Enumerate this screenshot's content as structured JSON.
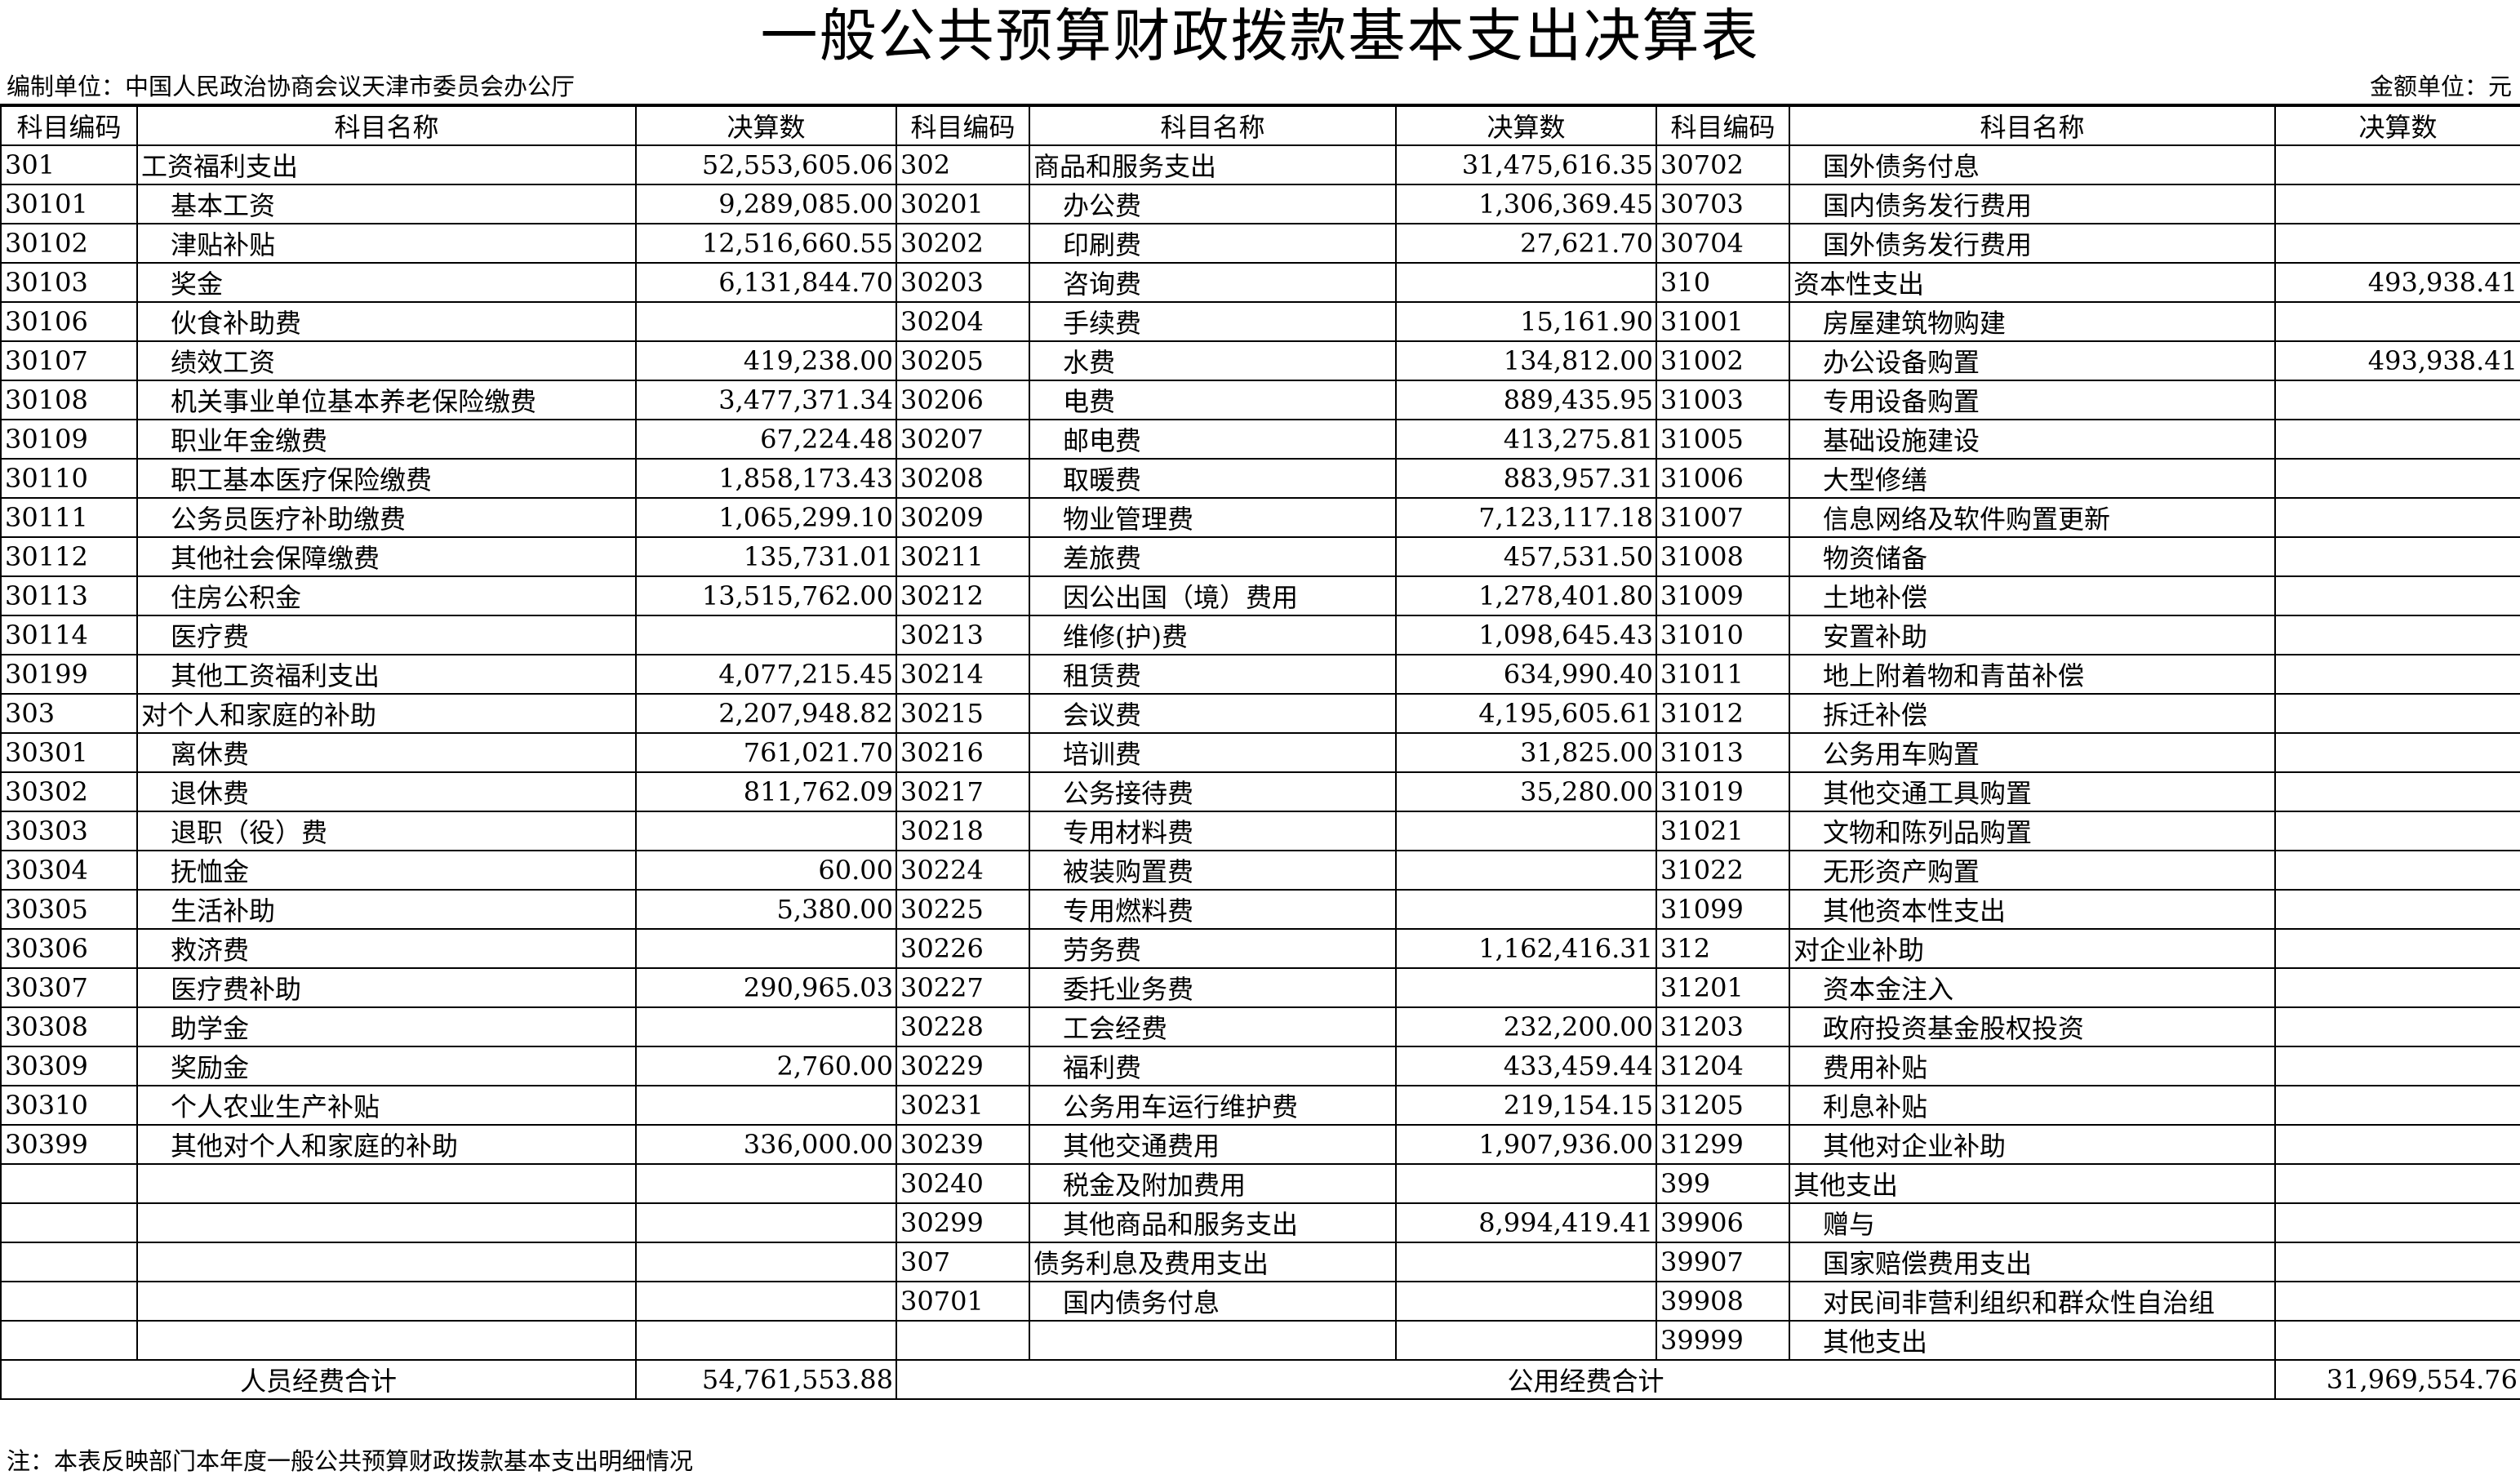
{
  "title": "一般公共预算财政拨款基本支出决算表",
  "unit_label": "编制单位：中国人民政治协商会议天津市委员会办公厅",
  "money_unit": "金额单位：元",
  "headers": [
    "科目编码",
    "科目名称",
    "决算数",
    "科目编码",
    "科目名称",
    "决算数",
    "科目编码",
    "科目名称",
    "决算数"
  ],
  "left": [
    {
      "code": "301",
      "name": "工资福利支出",
      "amount": "52,553,605.06"
    },
    {
      "code": "30101",
      "name": "基本工资",
      "amount": "9,289,085.00"
    },
    {
      "code": "30102",
      "name": "津贴补贴",
      "amount": "12,516,660.55"
    },
    {
      "code": "30103",
      "name": "奖金",
      "amount": "6,131,844.70"
    },
    {
      "code": "30106",
      "name": "伙食补助费",
      "amount": ""
    },
    {
      "code": "30107",
      "name": "绩效工资",
      "amount": "419,238.00"
    },
    {
      "code": "30108",
      "name": "机关事业单位基本养老保险缴费",
      "amount": "3,477,371.34"
    },
    {
      "code": "30109",
      "name": "职业年金缴费",
      "amount": "67,224.48"
    },
    {
      "code": "30110",
      "name": "职工基本医疗保险缴费",
      "amount": "1,858,173.43"
    },
    {
      "code": "30111",
      "name": "公务员医疗补助缴费",
      "amount": "1,065,299.10"
    },
    {
      "code": "30112",
      "name": "其他社会保障缴费",
      "amount": "135,731.01"
    },
    {
      "code": "30113",
      "name": "住房公积金",
      "amount": "13,515,762.00"
    },
    {
      "code": "30114",
      "name": "医疗费",
      "amount": ""
    },
    {
      "code": "30199",
      "name": "其他工资福利支出",
      "amount": "4,077,215.45"
    },
    {
      "code": "303",
      "name": "对个人和家庭的补助",
      "amount": "2,207,948.82"
    },
    {
      "code": "30301",
      "name": "离休费",
      "amount": "761,021.70"
    },
    {
      "code": "30302",
      "name": "退休费",
      "amount": "811,762.09"
    },
    {
      "code": "30303",
      "name": "退职（役）费",
      "amount": ""
    },
    {
      "code": "30304",
      "name": "抚恤金",
      "amount": "60.00"
    },
    {
      "code": "30305",
      "name": "生活补助",
      "amount": "5,380.00"
    },
    {
      "code": "30306",
      "name": "救济费",
      "amount": ""
    },
    {
      "code": "30307",
      "name": "医疗费补助",
      "amount": "290,965.03"
    },
    {
      "code": "30308",
      "name": "助学金",
      "amount": ""
    },
    {
      "code": "30309",
      "name": "奖励金",
      "amount": "2,760.00"
    },
    {
      "code": "30310",
      "name": "个人农业生产补贴",
      "amount": ""
    },
    {
      "code": "30399",
      "name": "其他对个人和家庭的补助",
      "amount": "336,000.00"
    },
    {
      "code": "",
      "name": "",
      "amount": ""
    },
    {
      "code": "",
      "name": "",
      "amount": ""
    },
    {
      "code": "",
      "name": "",
      "amount": ""
    },
    {
      "code": "",
      "name": "",
      "amount": ""
    },
    {
      "code": "",
      "name": "",
      "amount": ""
    }
  ],
  "middle": [
    {
      "code": "302",
      "name": "商品和服务支出",
      "amount": "31,475,616.35"
    },
    {
      "code": "30201",
      "name": "办公费",
      "amount": "1,306,369.45"
    },
    {
      "code": "30202",
      "name": "印刷费",
      "amount": "27,621.70"
    },
    {
      "code": "30203",
      "name": "咨询费",
      "amount": ""
    },
    {
      "code": "30204",
      "name": "手续费",
      "amount": "15,161.90"
    },
    {
      "code": "30205",
      "name": "水费",
      "amount": "134,812.00"
    },
    {
      "code": "30206",
      "name": "电费",
      "amount": "889,435.95"
    },
    {
      "code": "30207",
      "name": "邮电费",
      "amount": "413,275.81"
    },
    {
      "code": "30208",
      "name": "取暖费",
      "amount": "883,957.31"
    },
    {
      "code": "30209",
      "name": "物业管理费",
      "amount": "7,123,117.18"
    },
    {
      "code": "30211",
      "name": "差旅费",
      "amount": "457,531.50"
    },
    {
      "code": "30212",
      "name": "因公出国（境）费用",
      "amount": "1,278,401.80"
    },
    {
      "code": "30213",
      "name": "维修(护)费",
      "amount": "1,098,645.43"
    },
    {
      "code": "30214",
      "name": "租赁费",
      "amount": "634,990.40"
    },
    {
      "code": "30215",
      "name": "会议费",
      "amount": "4,195,605.61"
    },
    {
      "code": "30216",
      "name": "培训费",
      "amount": "31,825.00"
    },
    {
      "code": "30217",
      "name": "公务接待费",
      "amount": "35,280.00"
    },
    {
      "code": "30218",
      "name": "专用材料费",
      "amount": ""
    },
    {
      "code": "30224",
      "name": "被装购置费",
      "amount": ""
    },
    {
      "code": "30225",
      "name": "专用燃料费",
      "amount": ""
    },
    {
      "code": "30226",
      "name": "劳务费",
      "amount": "1,162,416.31"
    },
    {
      "code": "30227",
      "name": "委托业务费",
      "amount": ""
    },
    {
      "code": "30228",
      "name": "工会经费",
      "amount": "232,200.00"
    },
    {
      "code": "30229",
      "name": "福利费",
      "amount": "433,459.44"
    },
    {
      "code": "30231",
      "name": "公务用车运行维护费",
      "amount": "219,154.15"
    },
    {
      "code": "30239",
      "name": "其他交通费用",
      "amount": "1,907,936.00"
    },
    {
      "code": "30240",
      "name": "税金及附加费用",
      "amount": ""
    },
    {
      "code": "30299",
      "name": "其他商品和服务支出",
      "amount": "8,994,419.41"
    },
    {
      "code": "307",
      "name": "债务利息及费用支出",
      "amount": ""
    },
    {
      "code": "30701",
      "name": "国内债务付息",
      "amount": ""
    },
    {
      "code": "",
      "name": "",
      "amount": ""
    }
  ],
  "right": [
    {
      "code": "30702",
      "name": "国外债务付息",
      "amount": ""
    },
    {
      "code": "30703",
      "name": "国内债务发行费用",
      "amount": ""
    },
    {
      "code": "30704",
      "name": "国外债务发行费用",
      "amount": ""
    },
    {
      "code": "310",
      "name": "资本性支出",
      "amount": "493,938.41"
    },
    {
      "code": "31001",
      "name": "房屋建筑物购建",
      "amount": ""
    },
    {
      "code": "31002",
      "name": "办公设备购置",
      "amount": "493,938.41"
    },
    {
      "code": "31003",
      "name": "专用设备购置",
      "amount": ""
    },
    {
      "code": "31005",
      "name": "基础设施建设",
      "amount": ""
    },
    {
      "code": "31006",
      "name": "大型修缮",
      "amount": ""
    },
    {
      "code": "31007",
      "name": "信息网络及软件购置更新",
      "amount": ""
    },
    {
      "code": "31008",
      "name": "物资储备",
      "amount": ""
    },
    {
      "code": "31009",
      "name": "土地补偿",
      "amount": ""
    },
    {
      "code": "31010",
      "name": "安置补助",
      "amount": ""
    },
    {
      "code": "31011",
      "name": "地上附着物和青苗补偿",
      "amount": ""
    },
    {
      "code": "31012",
      "name": "拆迁补偿",
      "amount": ""
    },
    {
      "code": "31013",
      "name": "公务用车购置",
      "amount": ""
    },
    {
      "code": "31019",
      "name": "其他交通工具购置",
      "amount": ""
    },
    {
      "code": "31021",
      "name": "文物和陈列品购置",
      "amount": ""
    },
    {
      "code": "31022",
      "name": "无形资产购置",
      "amount": ""
    },
    {
      "code": "31099",
      "name": "其他资本性支出",
      "amount": ""
    },
    {
      "code": "312",
      "name": "对企业补助",
      "amount": ""
    },
    {
      "code": "31201",
      "name": "资本金注入",
      "amount": ""
    },
    {
      "code": "31203",
      "name": "政府投资基金股权投资",
      "amount": ""
    },
    {
      "code": "31204",
      "name": "费用补贴",
      "amount": ""
    },
    {
      "code": "31205",
      "name": "利息补贴",
      "amount": ""
    },
    {
      "code": "31299",
      "name": "其他对企业补助",
      "amount": ""
    },
    {
      "code": "399",
      "name": "其他支出",
      "amount": ""
    },
    {
      "code": "39906",
      "name": "赠与",
      "amount": ""
    },
    {
      "code": "39907",
      "name": "国家赔偿费用支出",
      "amount": ""
    },
    {
      "code": "39908",
      "name": "对民间非营利组织和群众性自治组",
      "amount": ""
    },
    {
      "code": "39999",
      "name": "其他支出",
      "amount": ""
    }
  ],
  "totals": {
    "personnel_label": "人员经费合计",
    "personnel_amount": "54,761,553.88",
    "public_label": "公用经费合计",
    "public_amount": "31,969,554.76"
  },
  "note": "注：本表反映部门本年度一般公共预算财政拨款基本支出明细情况"
}
